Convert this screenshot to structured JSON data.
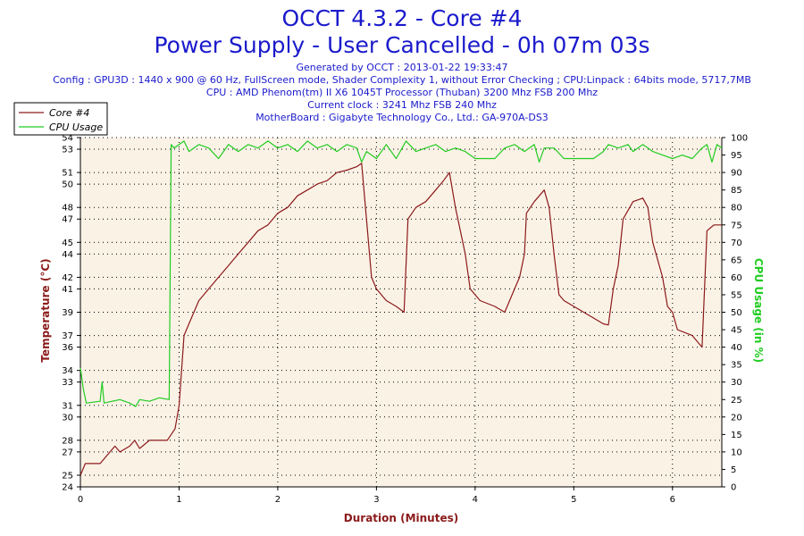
{
  "title_line1": "OCCT 4.3.2 - Core #4",
  "title_line2": "Power Supply - User Cancelled - 0h 07m 03s",
  "info_lines": [
    "Generated by OCCT : 2013-01-22 19:33:47",
    "Config : GPU3D : 1440 x 900 @ 60 Hz, FullScreen mode, Shader Complexity 1, without Error Checking ; CPU:Linpack : 64bits mode, 5717,7MB",
    "CPU : AMD Phenom(tm) II X6 1045T Processor (Thuban) 3200 Mhz FSB 200 Mhz",
    "Current clock : 3241 Mhz FSB 240 Mhz",
    "MotherBoard : Gigabyte Technology Co., Ltd.: GA-970A-DS3"
  ],
  "colors": {
    "title": "#1a1acc",
    "temperature": "#8b1a1a",
    "cpu_usage": "#22cc22",
    "plot_bg": "#fbf2e6",
    "axis_label_left": "#8b1a1a",
    "axis_label_right": "#22cc22",
    "axis_label_bottom": "#8b1a1a"
  },
  "chart_data": {
    "type": "line",
    "xlabel": "Duration (Minutes)",
    "ylabel_left": "Temperature (°C)",
    "ylabel_right": "CPU Usage (in %)",
    "xlim": [
      0,
      6.5
    ],
    "ylim_left": [
      24,
      54
    ],
    "ylim_right": [
      0,
      100
    ],
    "x_ticks": [
      0,
      1,
      2,
      3,
      4,
      5,
      6
    ],
    "y_ticks_left": [
      24,
      25,
      27,
      28,
      30,
      31,
      33,
      34,
      36,
      37,
      39,
      41,
      42,
      44,
      45,
      47,
      48,
      50,
      51,
      53,
      54
    ],
    "y_ticks_right": [
      0,
      5,
      10,
      15,
      20,
      25,
      30,
      35,
      40,
      45,
      50,
      55,
      60,
      65,
      70,
      75,
      80,
      85,
      90,
      95,
      100
    ],
    "grid": true,
    "legend_position": "top-left",
    "series": [
      {
        "name": "Core #4",
        "axis": "left",
        "points": [
          [
            0,
            25
          ],
          [
            0.05,
            26
          ],
          [
            0.2,
            26
          ],
          [
            0.25,
            26.5
          ],
          [
            0.3,
            27
          ],
          [
            0.35,
            27.5
          ],
          [
            0.4,
            27
          ],
          [
            0.5,
            27.5
          ],
          [
            0.55,
            28
          ],
          [
            0.6,
            27.3
          ],
          [
            0.7,
            28
          ],
          [
            0.8,
            28
          ],
          [
            0.88,
            28
          ],
          [
            0.92,
            28.5
          ],
          [
            0.96,
            29
          ],
          [
            1.0,
            31
          ],
          [
            1.05,
            37
          ],
          [
            1.1,
            38
          ],
          [
            1.2,
            40
          ],
          [
            1.3,
            41
          ],
          [
            1.4,
            42
          ],
          [
            1.5,
            43
          ],
          [
            1.6,
            44
          ],
          [
            1.7,
            45
          ],
          [
            1.8,
            46
          ],
          [
            1.9,
            46.5
          ],
          [
            2.0,
            47.5
          ],
          [
            2.1,
            48
          ],
          [
            2.2,
            49
          ],
          [
            2.3,
            49.5
          ],
          [
            2.4,
            50
          ],
          [
            2.5,
            50.3
          ],
          [
            2.6,
            51
          ],
          [
            2.7,
            51.2
          ],
          [
            2.8,
            51.5
          ],
          [
            2.85,
            51.8
          ],
          [
            2.95,
            42
          ],
          [
            3.0,
            41
          ],
          [
            3.1,
            40
          ],
          [
            3.2,
            39.5
          ],
          [
            3.28,
            39
          ],
          [
            3.32,
            47
          ],
          [
            3.4,
            48
          ],
          [
            3.5,
            48.5
          ],
          [
            3.6,
            49.5
          ],
          [
            3.68,
            50.3
          ],
          [
            3.74,
            51
          ],
          [
            3.8,
            48
          ],
          [
            3.9,
            44
          ],
          [
            3.95,
            41
          ],
          [
            4.05,
            40
          ],
          [
            4.2,
            39.5
          ],
          [
            4.3,
            39
          ],
          [
            4.4,
            41
          ],
          [
            4.45,
            42
          ],
          [
            4.5,
            44
          ],
          [
            4.52,
            47.5
          ],
          [
            4.6,
            48.5
          ],
          [
            4.7,
            49.5
          ],
          [
            4.75,
            48
          ],
          [
            4.8,
            44
          ],
          [
            4.85,
            40.5
          ],
          [
            4.9,
            40
          ],
          [
            5.0,
            39.5
          ],
          [
            5.1,
            39
          ],
          [
            5.2,
            38.5
          ],
          [
            5.3,
            38
          ],
          [
            5.35,
            37.9
          ],
          [
            5.4,
            41
          ],
          [
            5.45,
            43
          ],
          [
            5.5,
            47
          ],
          [
            5.6,
            48.5
          ],
          [
            5.7,
            48.8
          ],
          [
            5.75,
            48
          ],
          [
            5.8,
            45
          ],
          [
            5.9,
            42
          ],
          [
            5.95,
            39.5
          ],
          [
            6.0,
            39
          ],
          [
            6.05,
            37.5
          ],
          [
            6.2,
            37
          ],
          [
            6.25,
            36.5
          ],
          [
            6.3,
            36
          ],
          [
            6.35,
            46
          ],
          [
            6.42,
            46.5
          ],
          [
            6.5,
            46.5
          ]
        ]
      },
      {
        "name": "CPU Usage",
        "axis": "right",
        "points": [
          [
            0,
            34
          ],
          [
            0.03,
            28
          ],
          [
            0.06,
            24
          ],
          [
            0.2,
            24.5
          ],
          [
            0.22,
            30
          ],
          [
            0.24,
            24
          ],
          [
            0.4,
            25
          ],
          [
            0.5,
            24
          ],
          [
            0.56,
            23
          ],
          [
            0.6,
            25
          ],
          [
            0.7,
            24.5
          ],
          [
            0.8,
            25.5
          ],
          [
            0.9,
            25
          ],
          [
            0.92,
            98
          ],
          [
            0.95,
            97
          ],
          [
            1.05,
            99
          ],
          [
            1.1,
            96
          ],
          [
            1.2,
            98
          ],
          [
            1.3,
            97
          ],
          [
            1.4,
            94
          ],
          [
            1.5,
            98
          ],
          [
            1.6,
            96
          ],
          [
            1.7,
            98
          ],
          [
            1.8,
            97
          ],
          [
            1.9,
            99
          ],
          [
            2.0,
            97
          ],
          [
            2.1,
            98
          ],
          [
            2.2,
            96
          ],
          [
            2.3,
            99
          ],
          [
            2.4,
            97
          ],
          [
            2.5,
            98
          ],
          [
            2.6,
            96
          ],
          [
            2.7,
            98
          ],
          [
            2.8,
            97
          ],
          [
            2.85,
            93
          ],
          [
            2.9,
            96
          ],
          [
            3.0,
            94
          ],
          [
            3.1,
            98
          ],
          [
            3.2,
            94
          ],
          [
            3.3,
            99
          ],
          [
            3.4,
            96
          ],
          [
            3.5,
            97
          ],
          [
            3.6,
            98
          ],
          [
            3.7,
            96
          ],
          [
            3.8,
            97
          ],
          [
            3.9,
            96
          ],
          [
            4.0,
            94
          ],
          [
            4.2,
            94
          ],
          [
            4.3,
            97
          ],
          [
            4.4,
            98
          ],
          [
            4.5,
            96
          ],
          [
            4.6,
            98
          ],
          [
            4.65,
            93
          ],
          [
            4.7,
            97
          ],
          [
            4.8,
            97
          ],
          [
            4.9,
            94
          ],
          [
            5.0,
            94
          ],
          [
            5.2,
            94
          ],
          [
            5.3,
            96
          ],
          [
            5.35,
            98
          ],
          [
            5.45,
            97
          ],
          [
            5.55,
            98
          ],
          [
            5.6,
            96
          ],
          [
            5.7,
            98
          ],
          [
            5.8,
            96
          ],
          [
            5.9,
            95
          ],
          [
            6.0,
            94
          ],
          [
            6.1,
            95
          ],
          [
            6.2,
            94
          ],
          [
            6.3,
            97
          ],
          [
            6.35,
            98
          ],
          [
            6.4,
            93
          ],
          [
            6.45,
            98
          ],
          [
            6.5,
            97
          ]
        ]
      }
    ]
  }
}
